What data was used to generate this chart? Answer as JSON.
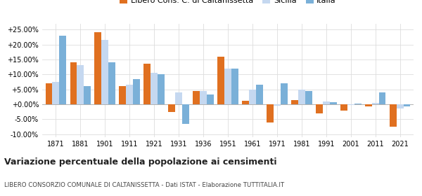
{
  "years": [
    1871,
    1881,
    1901,
    1911,
    1921,
    1931,
    1936,
    1951,
    1961,
    1971,
    1981,
    1991,
    2001,
    2011,
    2021
  ],
  "caltanissetta": [
    7.0,
    14.0,
    24.0,
    6.0,
    13.5,
    -2.5,
    4.5,
    16.0,
    1.2,
    -6.2,
    1.3,
    -3.0,
    -2.0,
    -0.8,
    -7.5
  ],
  "sicilia": [
    7.5,
    13.0,
    21.5,
    6.5,
    10.5,
    4.0,
    4.5,
    12.0,
    5.0,
    -0.5,
    5.0,
    1.0,
    -0.2,
    0.5,
    -1.5
  ],
  "italia": [
    23.0,
    6.0,
    14.0,
    8.5,
    10.0,
    -6.5,
    3.2,
    12.0,
    6.5,
    7.0,
    4.5,
    0.8,
    0.2,
    4.0,
    -0.7
  ],
  "color_caltanissetta": "#e07020",
  "color_sicilia": "#c5d8f0",
  "color_italia": "#7ab0d8",
  "title": "Variazione percentuale della popolazione ai censimenti",
  "subtitle": "LIBERO CONSORZIO COMUNALE DI CALTANISSETTA - Dati ISTAT - Elaborazione TUTTITALIA.IT",
  "legend_labels": [
    "Libero Cons. C. di Caltanissetta",
    "Sicilia",
    "Italia"
  ],
  "ylim": [
    -11,
    27
  ],
  "yticks": [
    -10,
    -5,
    0,
    5,
    10,
    15,
    20,
    25
  ],
  "bar_width": 0.28,
  "background_color": "#ffffff",
  "grid_color": "#dddddd"
}
